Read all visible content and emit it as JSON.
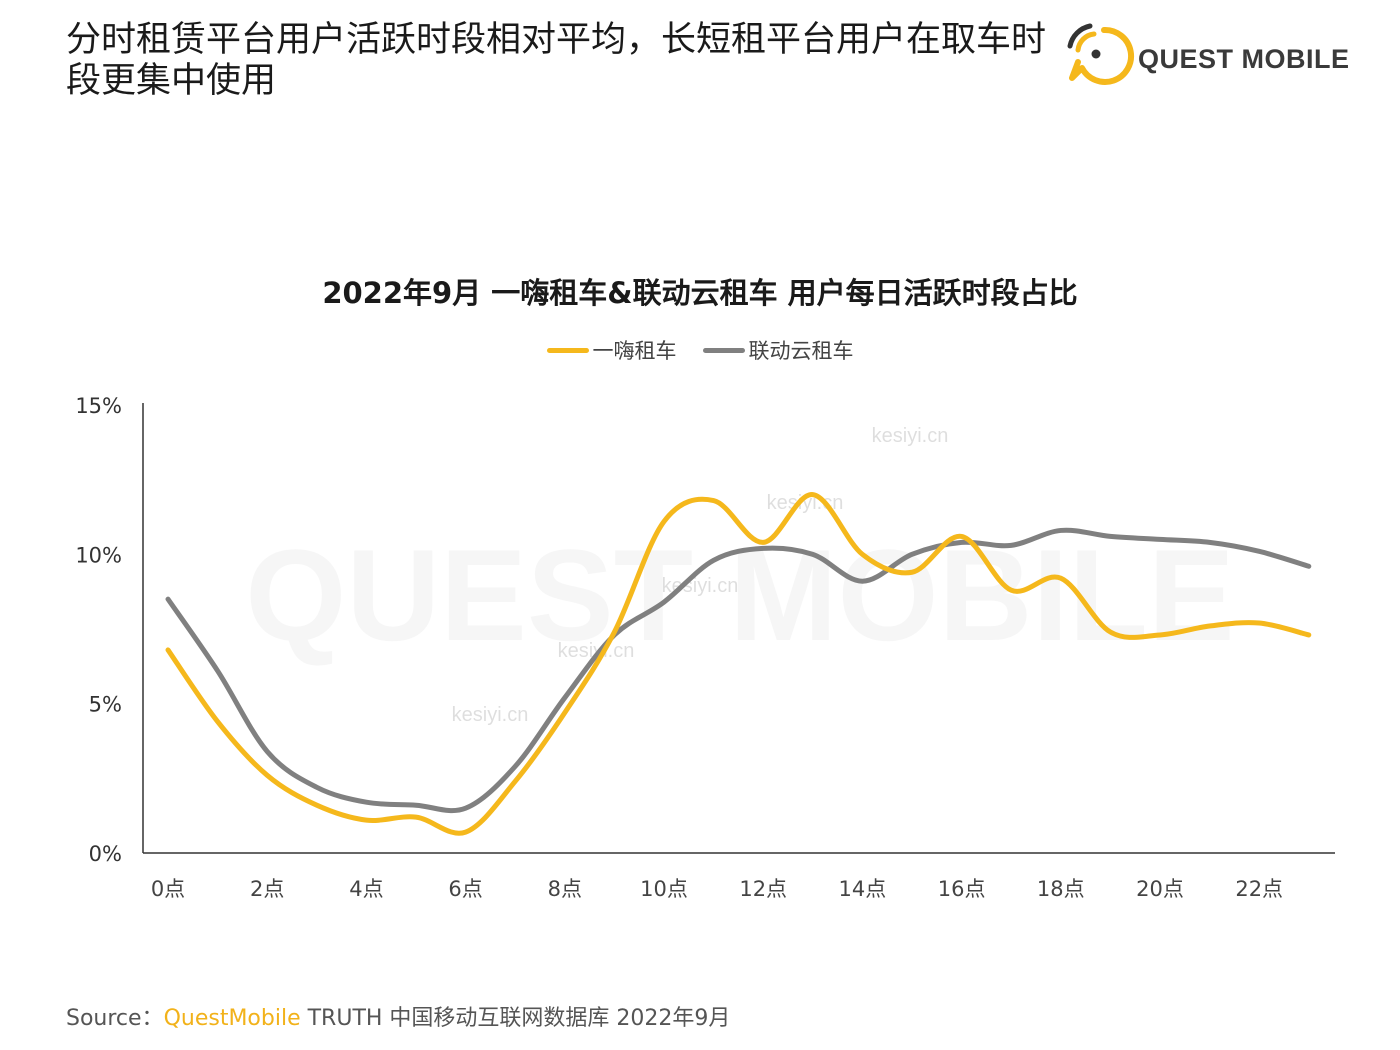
{
  "header": {
    "title": "分时租赁平台用户活跃时段相对平均，长短租平台用户在取车时段更集中使用"
  },
  "logo": {
    "text": "QUEST MOBILE"
  },
  "watermark": {
    "texts": [
      "kesiyi.cn",
      "QUEST MOBILE"
    ]
  },
  "colors": {
    "series_1": "#f5b81c",
    "series_2": "#808080",
    "axis": "#333333",
    "brand": "#f2b21a"
  },
  "chart_data": {
    "type": "line",
    "title": "2022年9月 一嗨租车&联动云租车 用户每日活跃时段占比",
    "xlabel": "",
    "ylabel": "",
    "x": [
      0,
      1,
      2,
      3,
      4,
      5,
      6,
      7,
      8,
      9,
      10,
      11,
      12,
      13,
      14,
      15,
      16,
      17,
      18,
      19,
      20,
      21,
      22,
      23
    ],
    "x_tick_labels": [
      "0点",
      "2点",
      "4点",
      "6点",
      "8点",
      "10点",
      "12点",
      "14点",
      "16点",
      "18点",
      "20点",
      "22点"
    ],
    "y_tick_labels": [
      "0%",
      "5%",
      "10%",
      "15%"
    ],
    "ylim": [
      0,
      15
    ],
    "y_unit": "%",
    "grid": false,
    "legend_position": "top-center",
    "series": [
      {
        "name": "一嗨租车",
        "values": [
          6.8,
          4.4,
          2.6,
          1.6,
          1.1,
          1.2,
          0.7,
          2.4,
          4.7,
          7.4,
          11.1,
          11.8,
          10.4,
          12.0,
          10.0,
          9.4,
          10.6,
          8.8,
          9.2,
          7.4,
          7.3,
          7.6,
          7.7,
          7.3
        ]
      },
      {
        "name": "联动云租车",
        "values": [
          8.5,
          6.1,
          3.4,
          2.2,
          1.7,
          1.6,
          1.5,
          2.9,
          5.2,
          7.3,
          8.4,
          9.8,
          10.2,
          10.0,
          9.1,
          10.0,
          10.4,
          10.3,
          10.8,
          10.6,
          10.5,
          10.4,
          10.1,
          9.6
        ]
      }
    ]
  },
  "footer": {
    "source_label": "Source：",
    "source_brand": "QuestMobile",
    "source_rest": " TRUTH 中国移动互联网数据库 2022年9月"
  }
}
